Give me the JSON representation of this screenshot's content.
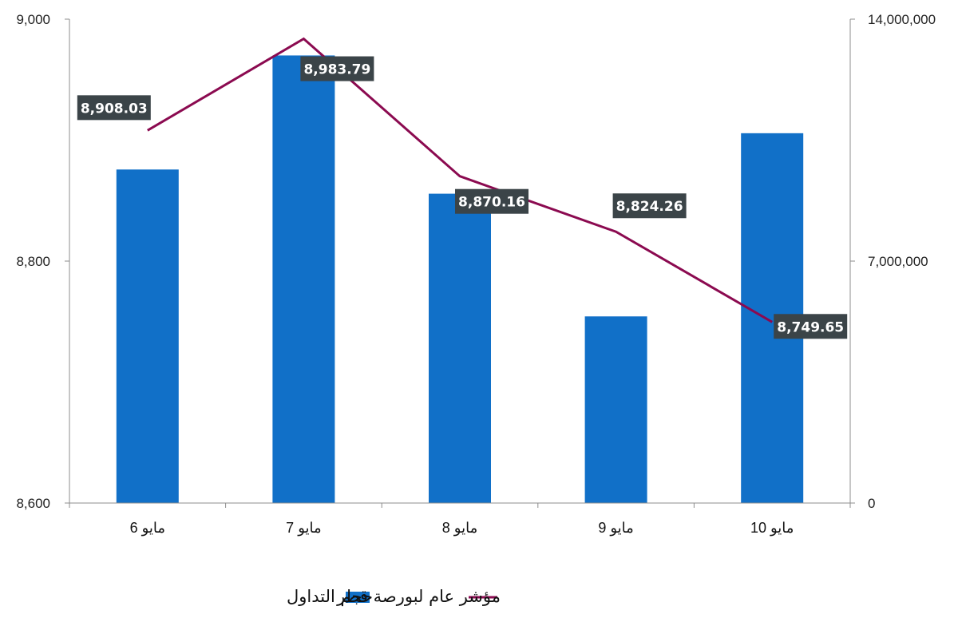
{
  "chart_data": {
    "type": "bar",
    "categories": [
      "6 مايو",
      "7 مايو",
      "8 مايو",
      "9 مايو",
      "10 مايو"
    ],
    "series": [
      {
        "name": "حجم التداول",
        "type": "bar",
        "axis": "right",
        "color": "#1170C8",
        "values": [
          9650000,
          12950000,
          8950000,
          5400000,
          10700000
        ]
      },
      {
        "name": "مؤشر عام لبورصة قطر",
        "type": "line",
        "axis": "left",
        "color": "#8B0A50",
        "values": [
          8908.03,
          8983.79,
          8870.16,
          8824.26,
          8749.65
        ],
        "labels": [
          "8,908.03",
          "8,983.79",
          "8,870.16",
          "8,824.26",
          "8,749.65"
        ]
      }
    ],
    "y_left": {
      "ylim": [
        8600,
        9000
      ],
      "ticks": [
        "8,600",
        "8,800",
        "9,000"
      ],
      "tick_values": [
        8600,
        8800,
        9000
      ]
    },
    "y_right": {
      "ylim": [
        0,
        14000000
      ],
      "ticks": [
        "0",
        "7,000,000",
        "14,000,000"
      ],
      "tick_values": [
        0,
        7000000,
        14000000
      ]
    },
    "grid": false,
    "legend_position": "bottom-center"
  },
  "legend": {
    "bar_label": "حجم التداول",
    "line_label": "مؤشر عام لبورصة قطر"
  }
}
